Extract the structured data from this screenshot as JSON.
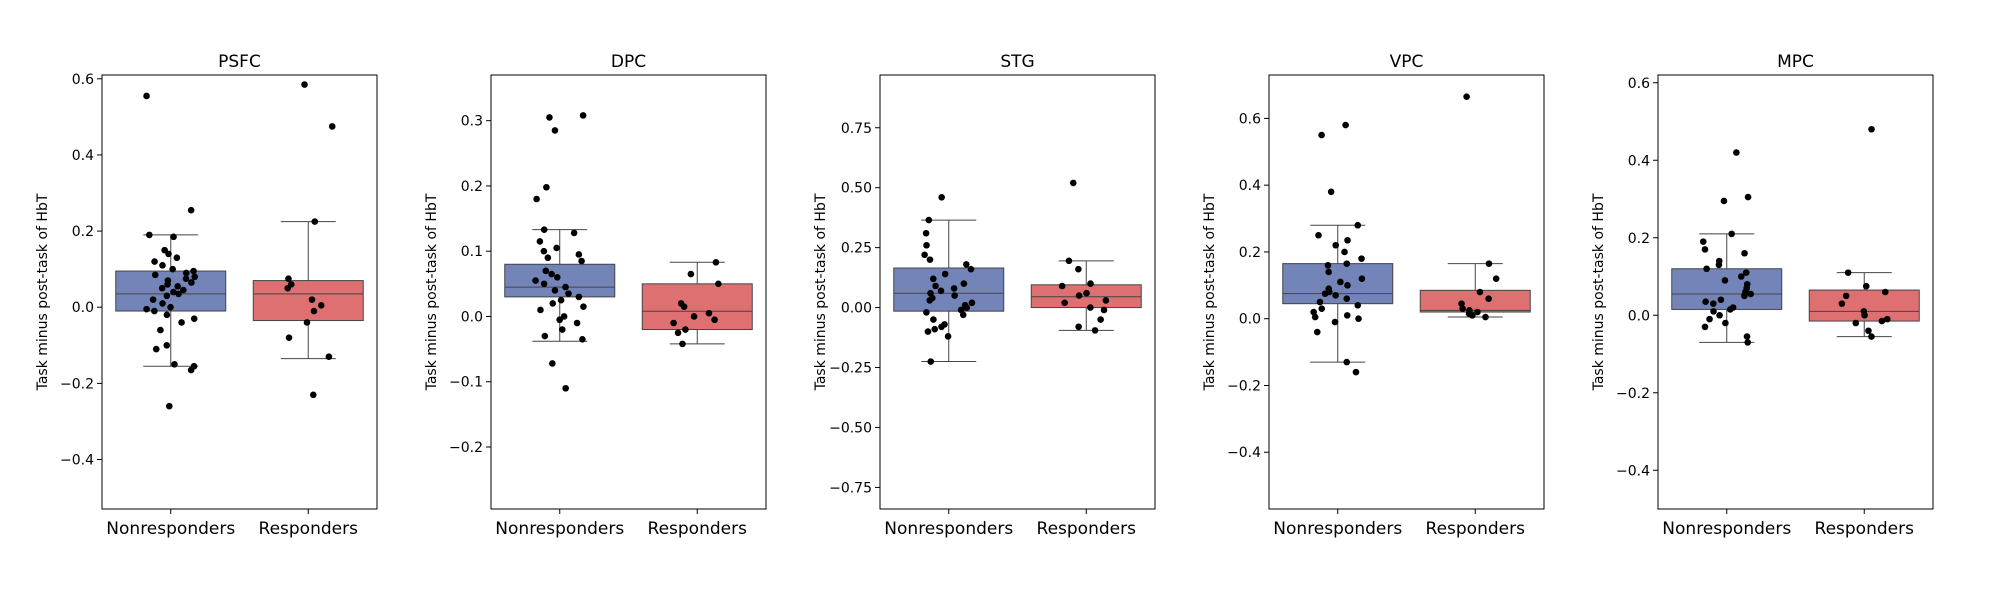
{
  "figure": {
    "ylabel": "Task minus post-task of HbT"
  },
  "colors": {
    "nonresponders": "#7384b8",
    "responders": "#de7072",
    "points": "#000000"
  },
  "categories": [
    "Nonresponders",
    "Responders"
  ],
  "chart_data": [
    {
      "type": "box",
      "title": "PSFC",
      "ylabel": "Task minus post-task of HbT",
      "ylim": [
        -0.53,
        0.61
      ],
      "yticks": [
        -0.4,
        -0.2,
        0.0,
        0.2,
        0.4,
        0.6
      ],
      "yticklabels": [
        "−0.4",
        "−0.2",
        "0.0",
        "0.2",
        "0.4",
        "0.6"
      ],
      "categories": [
        "Nonresponders",
        "Responders"
      ],
      "boxes": [
        {
          "q1": -0.01,
          "median": 0.035,
          "q3": 0.095,
          "whisker_low": -0.155,
          "whisker_high": 0.19
        },
        {
          "q1": -0.035,
          "median": 0.035,
          "q3": 0.07,
          "whisker_low": -0.135,
          "whisker_high": 0.225
        }
      ],
      "points": [
        [
          0.555,
          0.255,
          0.19,
          0.185,
          0.15,
          0.14,
          0.13,
          0.12,
          0.11,
          0.1,
          0.095,
          0.09,
          0.085,
          0.08,
          0.075,
          0.07,
          0.065,
          0.06,
          0.055,
          0.05,
          0.045,
          0.04,
          0.035,
          0.03,
          0.02,
          0.01,
          0.0,
          -0.005,
          -0.01,
          -0.02,
          -0.03,
          -0.04,
          -0.06,
          -0.1,
          -0.11,
          -0.15,
          -0.155,
          -0.165,
          -0.26
        ],
        [
          0.585,
          0.475,
          0.225,
          0.075,
          0.06,
          0.05,
          0.02,
          0.005,
          -0.01,
          -0.04,
          -0.08,
          -0.13,
          -0.23
        ]
      ]
    },
    {
      "type": "box",
      "title": "DPC",
      "ylabel": "Task minus post-task of HbT",
      "ylim": [
        -0.295,
        0.37
      ],
      "yticks": [
        -0.2,
        -0.1,
        0.0,
        0.1,
        0.2,
        0.3
      ],
      "yticklabels": [
        "−0.2",
        "−0.1",
        "0.0",
        "0.1",
        "0.2",
        "0.3"
      ],
      "categories": [
        "Nonresponders",
        "Responders"
      ],
      "boxes": [
        {
          "q1": 0.03,
          "median": 0.045,
          "q3": 0.08,
          "whisker_low": -0.038,
          "whisker_high": 0.133
        },
        {
          "q1": -0.02,
          "median": 0.008,
          "q3": 0.05,
          "whisker_low": -0.042,
          "whisker_high": 0.083
        }
      ],
      "points": [
        [
          0.308,
          0.305,
          0.285,
          0.198,
          0.18,
          0.133,
          0.128,
          0.115,
          0.105,
          0.1,
          0.095,
          0.09,
          0.085,
          0.07,
          0.065,
          0.06,
          0.055,
          0.05,
          0.045,
          0.04,
          0.035,
          0.03,
          0.025,
          0.02,
          0.015,
          0.01,
          0.0,
          -0.005,
          -0.01,
          -0.02,
          -0.03,
          -0.035,
          -0.072,
          -0.11
        ],
        [
          0.083,
          0.065,
          0.05,
          0.02,
          0.015,
          0.005,
          0.0,
          -0.005,
          -0.01,
          -0.02,
          -0.025,
          -0.042
        ]
      ]
    },
    {
      "type": "box",
      "title": "STG",
      "ylabel": "Task minus post-task of HbT",
      "ylim": [
        -0.84,
        0.97
      ],
      "yticks": [
        -0.75,
        -0.5,
        -0.25,
        0.0,
        0.25,
        0.5,
        0.75
      ],
      "yticklabels": [
        "−0.75",
        "−0.50",
        "−0.25",
        "0.00",
        "0.25",
        "0.50",
        "0.75"
      ],
      "categories": [
        "Nonresponders",
        "Responders"
      ],
      "boxes": [
        {
          "q1": -0.015,
          "median": 0.06,
          "q3": 0.165,
          "whisker_low": -0.225,
          "whisker_high": 0.365
        },
        {
          "q1": 0.0,
          "median": 0.045,
          "q3": 0.095,
          "whisker_low": -0.095,
          "whisker_high": 0.195
        }
      ],
      "points": [
        [
          0.46,
          0.365,
          0.31,
          0.26,
          0.22,
          0.2,
          0.18,
          0.16,
          0.14,
          0.12,
          0.1,
          0.09,
          0.08,
          0.07,
          0.06,
          0.05,
          0.04,
          0.03,
          0.02,
          0.01,
          0.0,
          -0.01,
          -0.02,
          -0.03,
          -0.05,
          -0.07,
          -0.08,
          -0.09,
          -0.1,
          -0.12,
          -0.225
        ],
        [
          0.52,
          0.195,
          0.16,
          0.1,
          0.09,
          0.06,
          0.05,
          0.03,
          0.02,
          0.0,
          -0.01,
          -0.05,
          -0.08,
          -0.095
        ]
      ]
    },
    {
      "type": "box",
      "title": "VPC",
      "ylabel": "Task minus post-task of HbT",
      "ylim": [
        -0.57,
        0.73
      ],
      "yticks": [
        -0.4,
        -0.2,
        0.0,
        0.2,
        0.4,
        0.6
      ],
      "yticklabels": [
        "−0.4",
        "−0.2",
        "0.0",
        "0.2",
        "0.4",
        "0.6"
      ],
      "categories": [
        "Nonresponders",
        "Responders"
      ],
      "boxes": [
        {
          "q1": 0.045,
          "median": 0.075,
          "q3": 0.165,
          "whisker_low": -0.13,
          "whisker_high": 0.28
        },
        {
          "q1": 0.02,
          "median": 0.025,
          "q3": 0.085,
          "whisker_low": 0.005,
          "whisker_high": 0.165
        }
      ],
      "points": [
        [
          0.58,
          0.55,
          0.38,
          0.28,
          0.25,
          0.235,
          0.22,
          0.2,
          0.18,
          0.165,
          0.16,
          0.14,
          0.12,
          0.11,
          0.1,
          0.09,
          0.08,
          0.075,
          0.07,
          0.06,
          0.05,
          0.04,
          0.03,
          0.02,
          0.01,
          0.005,
          0.0,
          -0.01,
          -0.04,
          -0.13,
          -0.16
        ],
        [
          0.665,
          0.165,
          0.12,
          0.08,
          0.06,
          0.045,
          0.03,
          0.025,
          0.02,
          0.015,
          0.01,
          0.005
        ]
      ]
    },
    {
      "type": "box",
      "title": "MPC",
      "ylabel": "Task minus post-task of HbT",
      "ylim": [
        -0.5,
        0.62
      ],
      "yticks": [
        -0.4,
        -0.2,
        0.0,
        0.2,
        0.4,
        0.6
      ],
      "yticklabels": [
        "−0.4",
        "−0.2",
        "0.0",
        "0.2",
        "0.4",
        "0.6"
      ],
      "categories": [
        "Nonresponders",
        "Responders"
      ],
      "boxes": [
        {
          "q1": 0.015,
          "median": 0.055,
          "q3": 0.12,
          "whisker_low": -0.07,
          "whisker_high": 0.21
        },
        {
          "q1": -0.015,
          "median": 0.01,
          "q3": 0.065,
          "whisker_low": -0.055,
          "whisker_high": 0.11
        }
      ],
      "points": [
        [
          0.42,
          0.305,
          0.295,
          0.21,
          0.19,
          0.17,
          0.16,
          0.14,
          0.13,
          0.12,
          0.11,
          0.1,
          0.09,
          0.08,
          0.07,
          0.06,
          0.055,
          0.05,
          0.04,
          0.035,
          0.03,
          0.02,
          0.015,
          0.01,
          0.0,
          -0.01,
          -0.02,
          -0.03,
          -0.055,
          -0.07
        ],
        [
          0.48,
          0.11,
          0.075,
          0.06,
          0.05,
          0.03,
          0.01,
          0.0,
          -0.01,
          -0.015,
          -0.02,
          -0.04,
          -0.055
        ]
      ]
    }
  ]
}
